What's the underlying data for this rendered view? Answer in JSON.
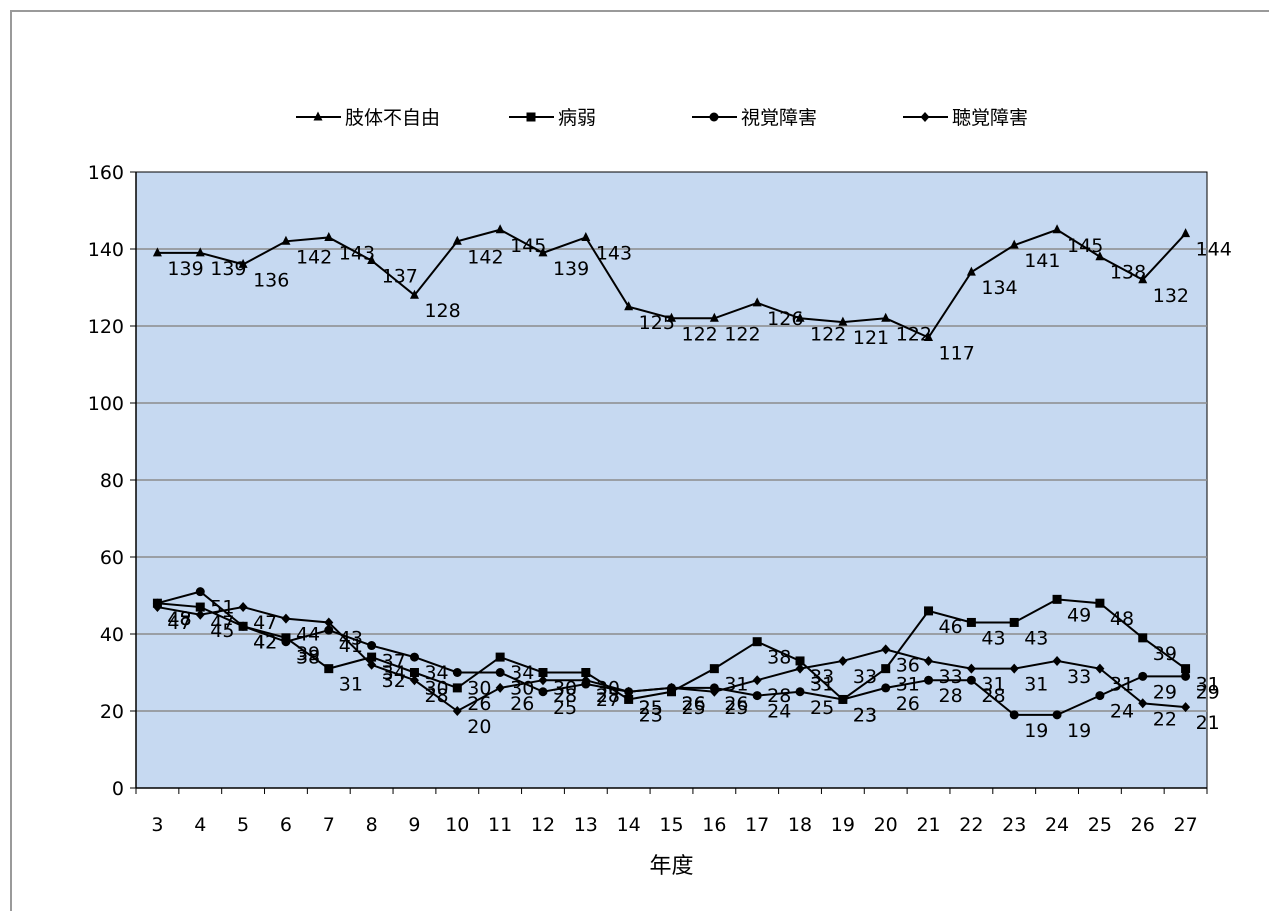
{
  "chart_data": {
    "type": "line",
    "title": "",
    "xlabel": "年度",
    "ylabel": "",
    "ylim": [
      0,
      160
    ],
    "yticks": [
      0,
      20,
      40,
      60,
      80,
      100,
      120,
      140,
      160
    ],
    "grid": true,
    "legend_position": "top",
    "plot_background": "#c6d9f1",
    "categories": [
      "3",
      "4",
      "5",
      "6",
      "7",
      "8",
      "9",
      "10",
      "11",
      "12",
      "13",
      "14",
      "15",
      "16",
      "17",
      "18",
      "19",
      "20",
      "21",
      "22",
      "23",
      "24",
      "25",
      "26",
      "27"
    ],
    "series": [
      {
        "name": "肢体不自由",
        "marker": "triangle",
        "color": "#000000",
        "values": [
          139,
          139,
          136,
          142,
          143,
          137,
          128,
          142,
          145,
          139,
          143,
          125,
          122,
          122,
          126,
          122,
          121,
          122,
          117,
          134,
          141,
          145,
          138,
          132,
          144
        ]
      },
      {
        "name": "病弱",
        "marker": "square",
        "color": "#000000",
        "values": [
          48,
          47,
          42,
          39,
          31,
          34,
          30,
          26,
          34,
          30,
          30,
          23,
          25,
          31,
          38,
          33,
          23,
          31,
          46,
          43,
          43,
          49,
          48,
          39,
          31
        ]
      },
      {
        "name": "視覚障害",
        "marker": "circle",
        "color": "#000000",
        "values": [
          48,
          51,
          42,
          38,
          41,
          37,
          34,
          30,
          30,
          25,
          27,
          25,
          26,
          26,
          24,
          25,
          23,
          26,
          28,
          28,
          19,
          19,
          24,
          29,
          29
        ]
      },
      {
        "name": "聴覚障害",
        "marker": "diamond",
        "color": "#000000",
        "values": [
          47,
          45,
          47,
          44,
          43,
          32,
          28,
          20,
          26,
          28,
          28,
          25,
          26,
          25,
          28,
          31,
          33,
          36,
          33,
          31,
          31,
          33,
          31,
          22,
          21
        ]
      }
    ]
  }
}
